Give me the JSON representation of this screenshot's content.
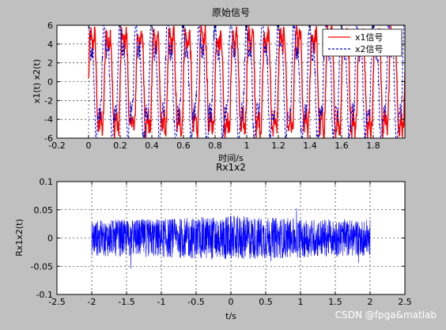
{
  "figure": {
    "watermark": "CSDN @fpga&matlab",
    "background": "#c0c0c0"
  },
  "chart_data": [
    {
      "type": "line",
      "title": "原始信号",
      "xlabel": "时间/s",
      "ylabel": "x1(t) x2(t)",
      "xlim": [
        -0.2,
        2.0
      ],
      "ylim": [
        -6,
        6
      ],
      "xticks": [
        -0.2,
        0,
        0.2,
        0.4,
        0.6,
        0.8,
        1,
        1.2,
        1.4,
        1.6,
        1.8
      ],
      "xtick_labels": [
        "-0.2",
        "0",
        "0.2",
        "0.4",
        "0.6",
        "0.8",
        "1",
        "1.2",
        "1.4",
        "1.6",
        "1.8"
      ],
      "yticks": [
        -6,
        -4,
        -2,
        0,
        2,
        4,
        6
      ],
      "ytick_labels": [
        "-6",
        "-4",
        "-2",
        "0",
        "2",
        "4",
        "6"
      ],
      "grid": true,
      "legend_position": "top-right",
      "signal_range": [
        0,
        2
      ],
      "series": [
        {
          "name": "x1信号",
          "color": "#ff0000",
          "style": "solid",
          "freq": 10,
          "phase": 0
        },
        {
          "name": "x2信号",
          "color": "#0000cc",
          "style": "dashed",
          "freq": 10,
          "phase": 1.2
        }
      ]
    },
    {
      "type": "line",
      "title": "Rx1x2",
      "xlabel": "t/s",
      "ylabel": "Rx1x2(t)",
      "xlim": [
        -2.5,
        2.5
      ],
      "ylim": [
        -0.1,
        0.1
      ],
      "xticks": [
        -2.5,
        -2,
        -1.5,
        -1,
        -0.5,
        0,
        0.5,
        1,
        1.5,
        2,
        2.5
      ],
      "xtick_labels": [
        "-2.5",
        "-2",
        "-1.5",
        "-1",
        "-0.5",
        "0",
        "0.5",
        "1",
        "1.5",
        "2",
        "2.5"
      ],
      "yticks": [
        -0.1,
        -0.05,
        0,
        0.05,
        0.1
      ],
      "ytick_labels": [
        "-0.1",
        "-0.05",
        "0",
        "0.05",
        "0.1"
      ],
      "grid": true,
      "signal_range": [
        -2.0,
        2.0
      ],
      "amplitude": 0.03,
      "series": [
        {
          "color": "#0000ff",
          "style": "solid"
        }
      ]
    }
  ]
}
